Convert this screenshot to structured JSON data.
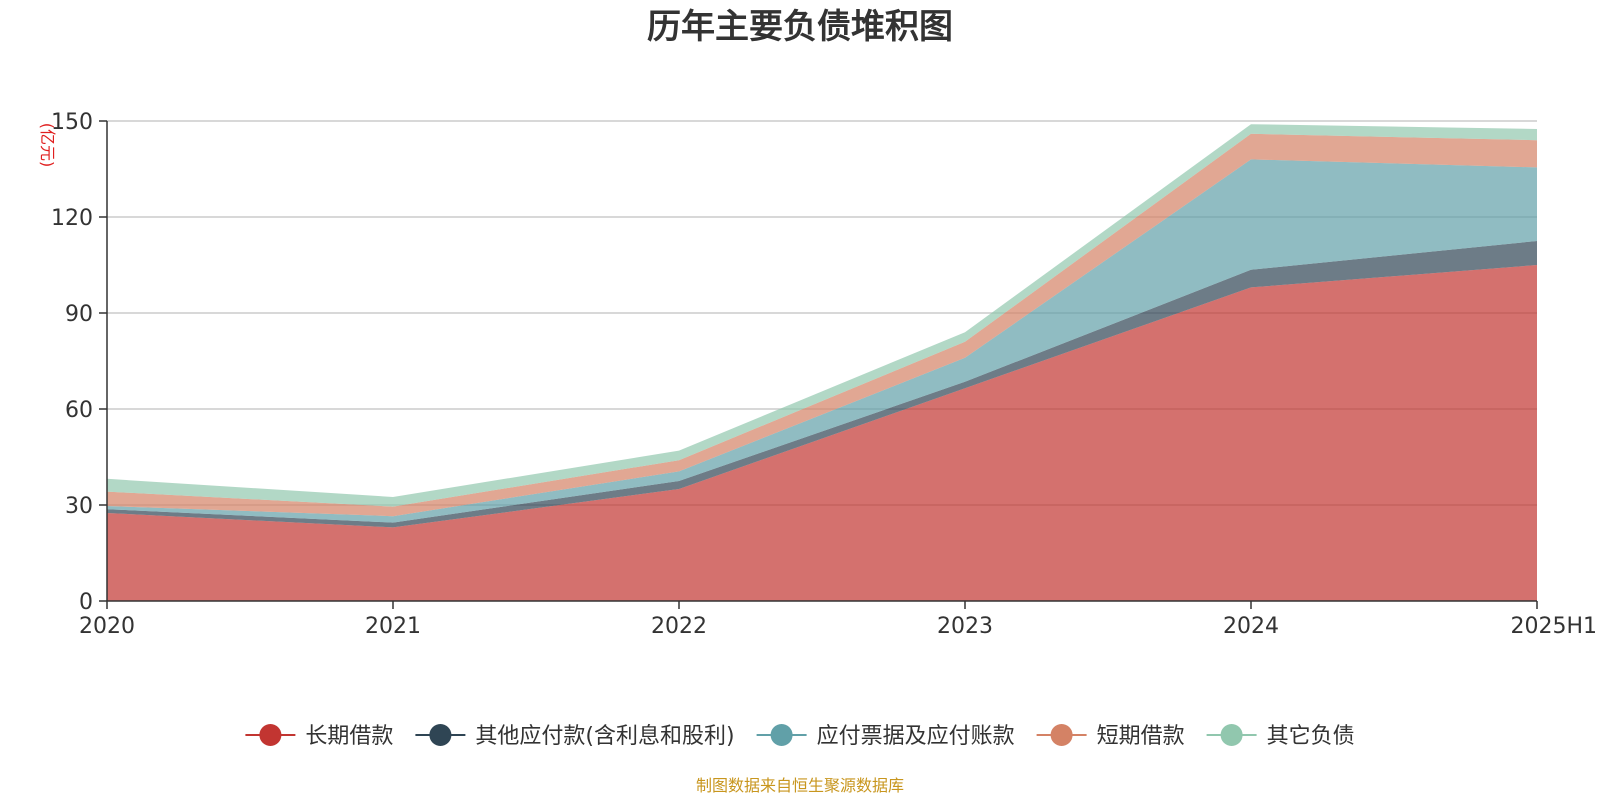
{
  "chart_data": {
    "type": "area",
    "stacked": true,
    "title": "历年主要负债堆积图",
    "y_unit": "(亿元)",
    "categories": [
      "2020",
      "2021",
      "2022",
      "2023",
      "2024",
      "2025H1"
    ],
    "ylim": [
      0,
      150
    ],
    "yticks": [
      "0",
      "30",
      "60",
      "90",
      "120",
      "150"
    ],
    "grid": true,
    "legend_position": "bottom",
    "series": [
      {
        "name": "长期借款",
        "color": "#c23531",
        "values": [
          27.5,
          23,
          35,
          66.5,
          98,
          105
        ]
      },
      {
        "name": "其他应付款(含利息和股利)",
        "color": "#2f4554",
        "values": [
          1.2,
          1.5,
          2.5,
          2.0,
          5.5,
          7.5
        ]
      },
      {
        "name": "应付票据及应付账款",
        "color": "#61a0a8",
        "values": [
          1.0,
          2.0,
          3.0,
          7.5,
          34.5,
          23
        ]
      },
      {
        "name": "短期借款",
        "color": "#d48265",
        "values": [
          4.5,
          3.0,
          3.5,
          5.0,
          8.0,
          8.5
        ]
      },
      {
        "name": "其它负债",
        "color": "#91c7ae",
        "values": [
          4.0,
          3.0,
          3.0,
          3.0,
          3.0,
          3.5
        ]
      }
    ],
    "source": "制图数据来自恒生聚源数据库"
  }
}
